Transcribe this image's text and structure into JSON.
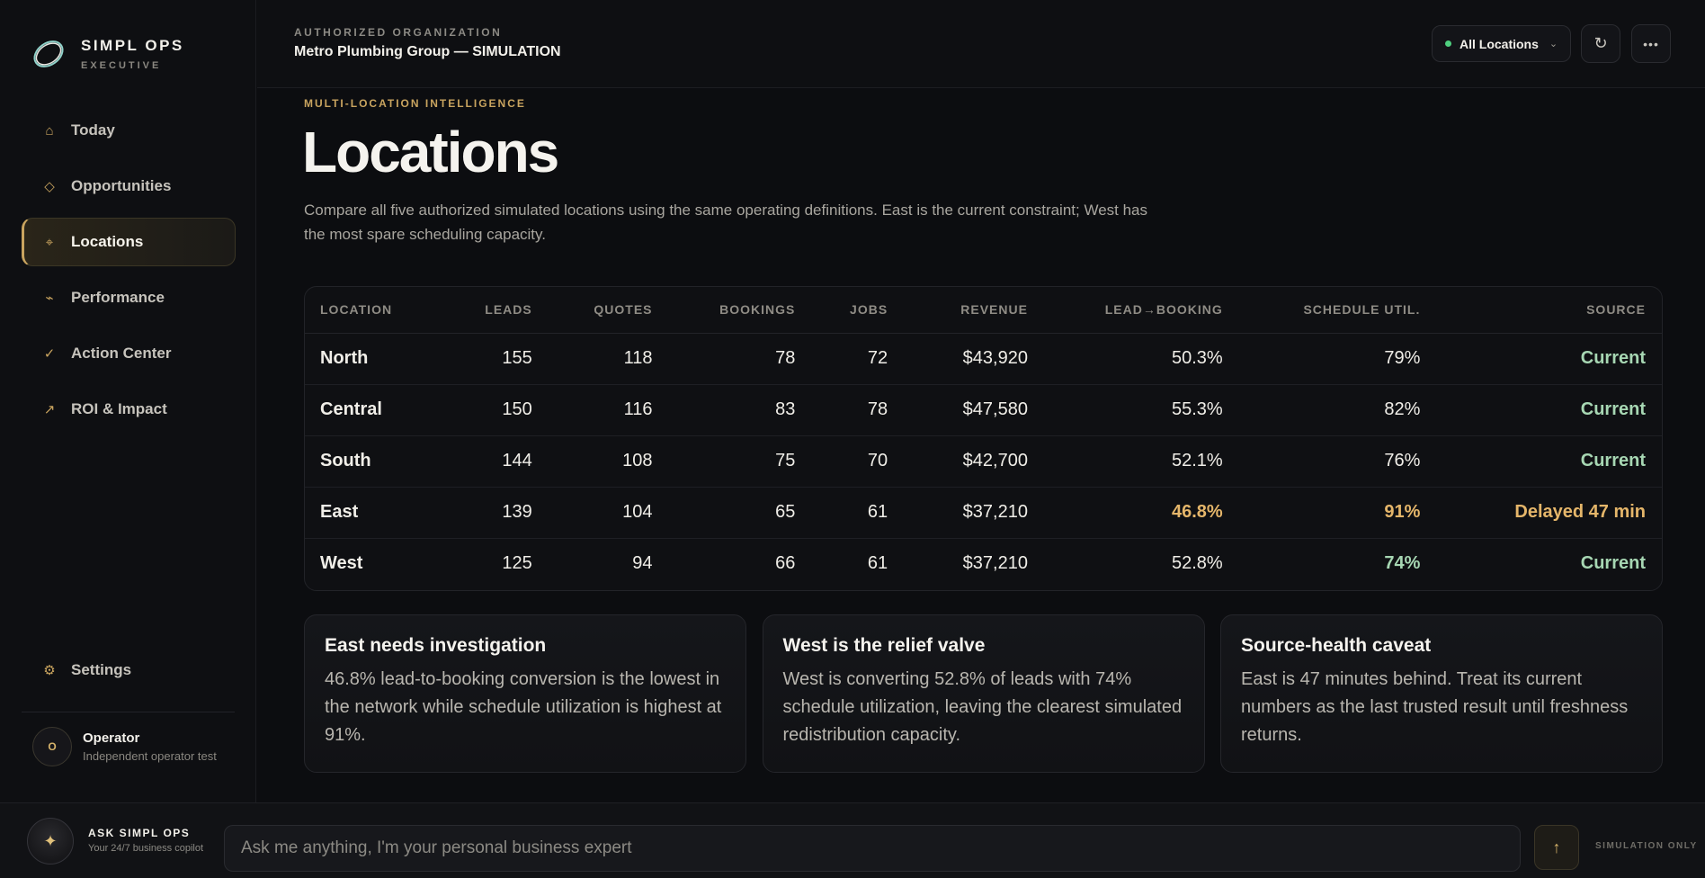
{
  "brand": {
    "name": "SIMPL OPS",
    "sub": "EXECUTIVE"
  },
  "sidebar": {
    "items": [
      {
        "label": "Today",
        "icon": "home-icon",
        "glyph": "⌂"
      },
      {
        "label": "Opportunities",
        "icon": "diamond-icon",
        "glyph": "◇"
      },
      {
        "label": "Locations",
        "icon": "location-icon",
        "glyph": "⌖",
        "active": true
      },
      {
        "label": "Performance",
        "icon": "trend-icon",
        "glyph": "⌁"
      },
      {
        "label": "Action Center",
        "icon": "check-icon",
        "glyph": "✓"
      },
      {
        "label": "ROI & Impact",
        "icon": "arrow-up-right-icon",
        "glyph": "↗"
      }
    ],
    "settings": {
      "label": "Settings",
      "glyph": "⚙"
    },
    "user": {
      "initial": "O",
      "name": "Operator",
      "role": "Independent operator test"
    }
  },
  "header": {
    "org_label": "AUTHORIZED ORGANIZATION",
    "org_name": "Metro Plumbing Group — SIMULATION",
    "location_select": "All Locations",
    "refresh_glyph": "↻",
    "more_glyph": "•••"
  },
  "main": {
    "eyebrow": "MULTI-LOCATION INTELLIGENCE",
    "title": "Locations",
    "description": "Compare all five authorized simulated locations using the same operating definitions. East is the current constraint; West has the most spare scheduling capacity."
  },
  "table": {
    "columns": [
      "LOCATION",
      "LEADS",
      "QUOTES",
      "BOOKINGS",
      "JOBS",
      "REVENUE",
      "LEAD→BOOKING",
      "SCHEDULE UTIL.",
      "SOURCE"
    ],
    "rows": [
      {
        "location": "North",
        "leads": "155",
        "quotes": "118",
        "bookings": "78",
        "jobs": "72",
        "revenue": "$43,920",
        "lead_booking": "50.3%",
        "util": "79%",
        "source": "Current"
      },
      {
        "location": "Central",
        "leads": "150",
        "quotes": "116",
        "bookings": "83",
        "jobs": "78",
        "revenue": "$47,580",
        "lead_booking": "55.3%",
        "util": "82%",
        "source": "Current"
      },
      {
        "location": "South",
        "leads": "144",
        "quotes": "108",
        "bookings": "75",
        "jobs": "70",
        "revenue": "$42,700",
        "lead_booking": "52.1%",
        "util": "76%",
        "source": "Current"
      },
      {
        "location": "East",
        "leads": "139",
        "quotes": "104",
        "bookings": "65",
        "jobs": "61",
        "revenue": "$37,210",
        "lead_booking": "46.8%",
        "util": "91%",
        "source": "Delayed 47 min"
      },
      {
        "location": "West",
        "leads": "125",
        "quotes": "94",
        "bookings": "66",
        "jobs": "61",
        "revenue": "$37,210",
        "lead_booking": "52.8%",
        "util": "74%",
        "source": "Current"
      }
    ]
  },
  "cards": [
    {
      "title": "East needs investigation",
      "body": "46.8% lead-to-booking conversion is the lowest in the network while schedule utilization is highest at 91%."
    },
    {
      "title": "West is the relief valve",
      "body": "West is converting 52.8% of leads with 74% schedule utilization, leaving the clearest simulated redistribution capacity."
    },
    {
      "title": "Source-health caveat",
      "body": "East is 47 minutes behind. Treat its current numbers as the last trusted result until freshness returns."
    }
  ],
  "ask": {
    "title": "ASK SIMPL OPS",
    "sub": "Your 24/7 business copilot",
    "placeholder": "Ask me anything, I'm your personal business expert",
    "glyph": "✦",
    "send_glyph": "↑",
    "sim_only": "SIMULATION ONLY"
  },
  "colors": {
    "accent": "#c9a45f",
    "good": "#a7d7b3",
    "warn": "#e5b66a",
    "status_dot": "#4fd07f"
  }
}
